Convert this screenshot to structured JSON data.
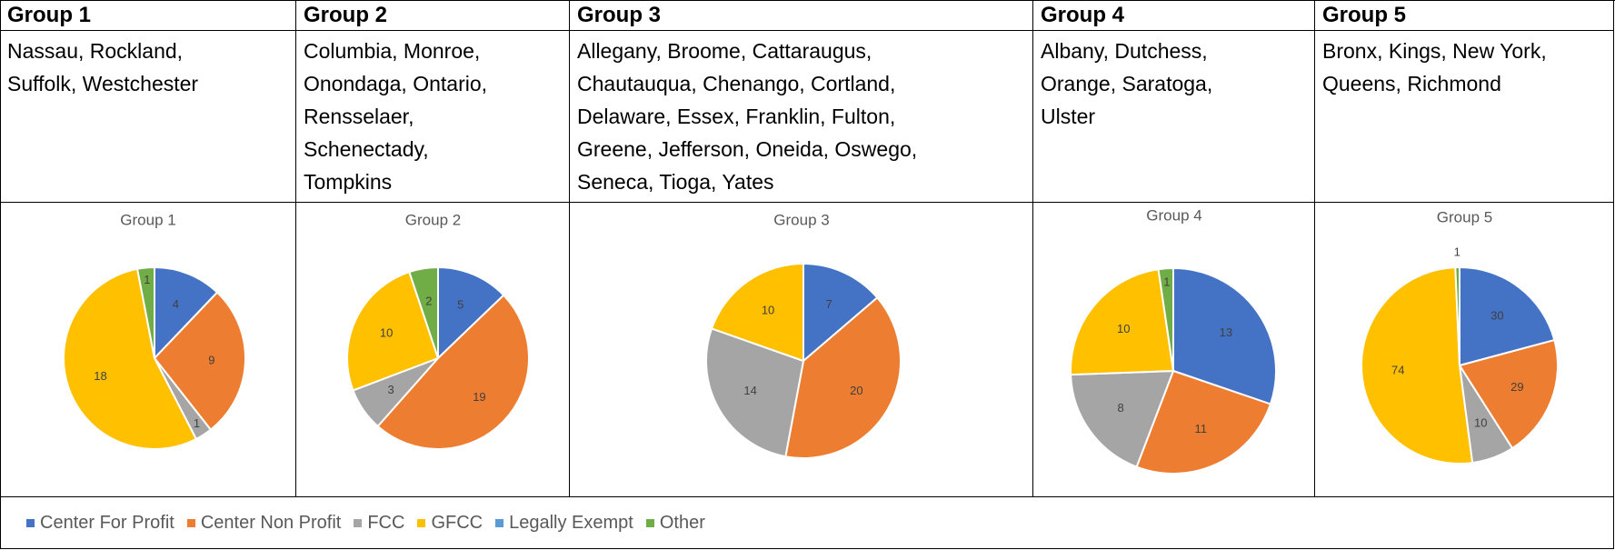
{
  "table": {
    "header": [
      "Group 1",
      "Group 2",
      "Group 3",
      "Group 4",
      "Group 5"
    ],
    "rows": [
      [
        [
          "Nassau, Rockland,",
          "Suffolk, Westchester"
        ],
        [
          "Columbia, Monroe,",
          "Onondaga, Ontario,",
          "Rensselaer,",
          "Schenectady,",
          "Tompkins"
        ],
        [
          "Allegany, Broome, Cattaraugus,",
          "Chautauqua, Chenango, Cortland,",
          "Delaware, Essex, Franklin, Fulton,",
          "Greene, Jefferson, Oneida, Oswego,",
          "Seneca, Tioga, Yates"
        ],
        [
          "Albany, Dutchess,",
          "Orange, Saratoga,",
          "Ulster"
        ],
        [
          "Bronx, Kings, New York,",
          "Queens, Richmond"
        ]
      ]
    ]
  },
  "legend": [
    {
      "name": "Center For Profit",
      "color": "#4472c4"
    },
    {
      "name": "Center Non Profit",
      "color": "#ed7d31"
    },
    {
      "name": "FCC",
      "color": "#a5a5a5"
    },
    {
      "name": "GFCC",
      "color": "#ffc000"
    },
    {
      "name": "Legally Exempt",
      "color": "#5b9bd5"
    },
    {
      "name": "Other",
      "color": "#70ad47"
    }
  ],
  "chart_data": [
    {
      "type": "pie",
      "title": "Group 1",
      "values": [
        4,
        9,
        1,
        18,
        null,
        1
      ]
    },
    {
      "type": "pie",
      "title": "Group 2",
      "values": [
        5,
        19,
        3,
        10,
        null,
        2
      ]
    },
    {
      "type": "pie",
      "title": "Group 3",
      "values": [
        7,
        20,
        14,
        10,
        null,
        null
      ]
    },
    {
      "type": "pie",
      "title": "Group 4",
      "values": [
        13,
        11,
        8,
        10,
        null,
        1
      ]
    },
    {
      "type": "pie",
      "title": "Group 5",
      "values": [
        30,
        29,
        10,
        74,
        null,
        1
      ]
    }
  ]
}
